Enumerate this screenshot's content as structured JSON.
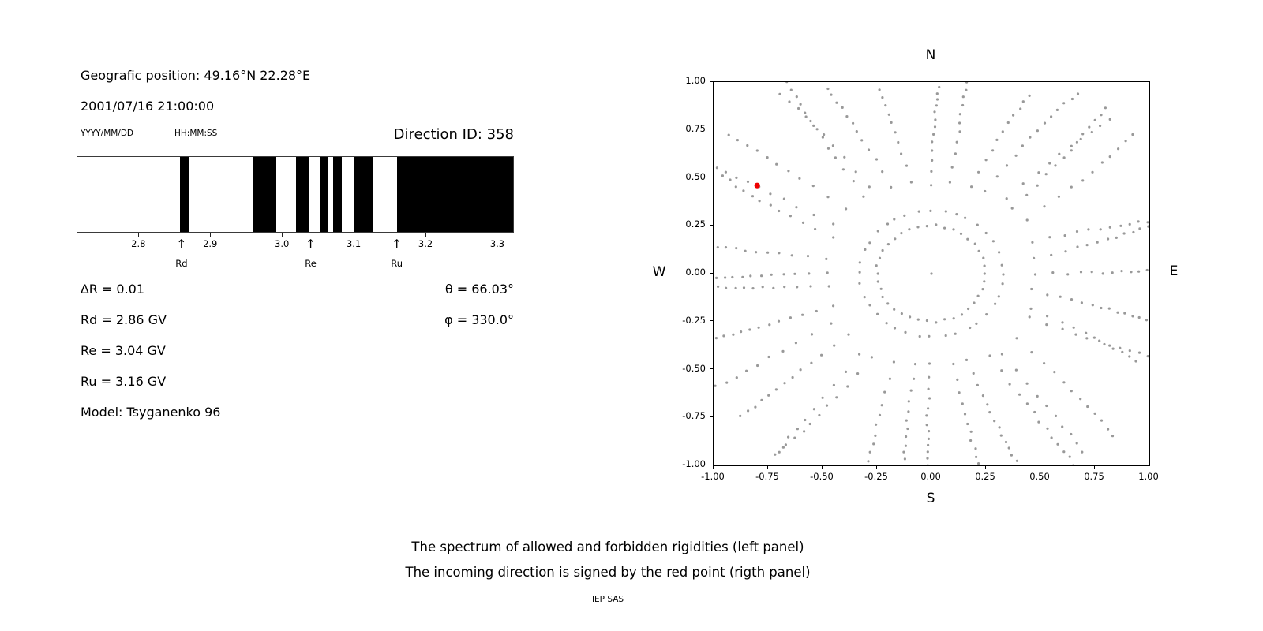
{
  "left_panel": {
    "position_line": "Geografic position: 49.16°N 22.28°E",
    "datetime_line": "2001/07/16 21:00:00",
    "date_format_label": "YYYY/MM/DD",
    "time_format_label": "HH:MM:SS",
    "direction_id_label": "Direction ID: 358",
    "stats": {
      "delta_r": "∆R = 0.01",
      "theta": "θ = 66.03°",
      "rd": "Rd = 2.86 GV",
      "phi": "φ = 330.0°",
      "re": "Re = 3.04 GV",
      "ru": "Ru = 3.16 GV",
      "model": "Model: Tsyganenko 96"
    }
  },
  "caption": {
    "line1": "The spectrum of allowed and forbidden rigidities (left panel)",
    "line2": "The incoming direction is signed by the red point (rigth panel)",
    "credit": "IEP SAS"
  },
  "chart_data": [
    {
      "type": "bar",
      "panel": "left-rigidity-spectrum",
      "title": "Direction ID: 358",
      "x_range_gv": [
        2.715,
        3.322
      ],
      "x_ticks": [
        "2.8",
        "2.9",
        "3.0",
        "3.1",
        "3.2",
        "3.3"
      ],
      "band_color": "#000000",
      "forbidden_bands_gv": [
        [
          2.858,
          2.87
        ],
        [
          2.96,
          2.992
        ],
        [
          3.02,
          3.037
        ],
        [
          3.052,
          3.063
        ],
        [
          3.071,
          3.084
        ],
        [
          3.1,
          3.127
        ],
        [
          3.16,
          3.322
        ]
      ],
      "markers": [
        {
          "label": "Rd",
          "value_gv": 2.86
        },
        {
          "label": "Re",
          "value_gv": 3.04
        },
        {
          "label": "Ru",
          "value_gv": 3.16
        }
      ],
      "delta_r_gv": 0.01,
      "rd_gv": 2.86,
      "re_gv": 3.04,
      "ru_gv": 3.16,
      "model": "Tsyganenko 96"
    },
    {
      "type": "scatter",
      "panel": "right-incoming-direction-map",
      "xlim": [
        -1.0,
        1.0
      ],
      "ylim": [
        -1.0,
        1.0
      ],
      "x_ticks": [
        "-1.00",
        "-0.75",
        "-0.50",
        "-0.25",
        "0.00",
        "0.25",
        "0.50",
        "0.75",
        "1.00"
      ],
      "y_ticks": [
        "1.00",
        "0.75",
        "0.50",
        "0.25",
        "0.00",
        "-0.25",
        "-0.50",
        "-0.75",
        "-1.00"
      ],
      "compass": {
        "top": "N",
        "bottom": "S",
        "left": "W",
        "right": "E"
      },
      "theta_deg": 66.03,
      "phi_deg": 330.0,
      "red_point": {
        "x": -0.8,
        "y": 0.46,
        "color": "#ee0000"
      },
      "pattern": {
        "description": "gray dots: inner ring of directions plus ~36 radial spokes of asymptotic-direction dots, denser toward outer ends",
        "num_rays": 36,
        "ray_angle_step_deg": 10,
        "inner_ring_radius": 0.25,
        "inner_ring_dots": 38,
        "ray_r_start": 0.33,
        "ray_r_max": 1.18,
        "dots_per_ray_min": 11,
        "dots_per_ray_max": 14,
        "dot_color": "#999999",
        "center_dot": true
      }
    }
  ]
}
